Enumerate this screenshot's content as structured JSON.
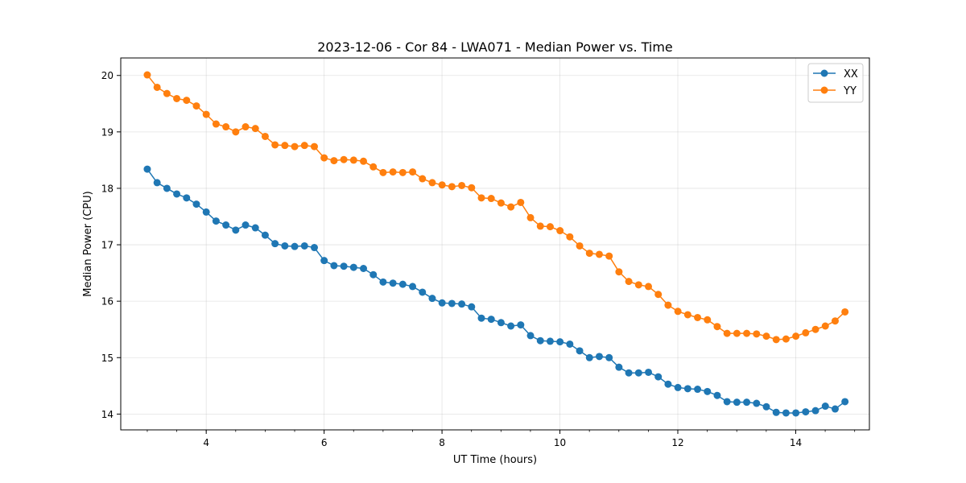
{
  "chart_data": {
    "type": "line",
    "title": "2023-12-06 - Cor 84 - LWA071 - Median Power vs. Time",
    "xlabel": "UT Time (hours)",
    "ylabel": "Median Power (CPU)",
    "xlim": [
      2.55,
      15.25
    ],
    "ylim": [
      13.72,
      20.31
    ],
    "xticks": [
      4,
      6,
      8,
      10,
      12,
      14
    ],
    "xtick_labels": [
      "4",
      "6",
      "8",
      "10",
      "12",
      "14"
    ],
    "xminor_step": 0.5,
    "yticks": [
      14,
      15,
      16,
      17,
      18,
      19,
      20
    ],
    "ytick_labels": [
      "14",
      "15",
      "16",
      "17",
      "18",
      "19",
      "20"
    ],
    "grid": true,
    "legend_position": "top-right",
    "x_start": 3.0,
    "x_step": 0.1667,
    "series": [
      {
        "name": "XX",
        "color": "#1f77b4",
        "marker": "circle",
        "values": [
          18.34,
          18.1,
          18.0,
          17.9,
          17.83,
          17.72,
          17.58,
          17.42,
          17.35,
          17.26,
          17.35,
          17.3,
          17.17,
          17.02,
          16.98,
          16.97,
          16.98,
          16.95,
          16.72,
          16.63,
          16.62,
          16.6,
          16.58,
          16.47,
          16.34,
          16.32,
          16.3,
          16.26,
          16.16,
          16.05,
          15.97,
          15.96,
          15.95,
          15.9,
          15.7,
          15.68,
          15.62,
          15.56,
          15.58,
          15.39,
          15.3,
          15.29,
          15.28,
          15.24,
          15.12,
          15.0,
          15.02,
          15.0,
          14.83,
          14.73,
          14.73,
          14.74,
          14.66,
          14.53,
          14.47,
          14.45,
          14.44,
          14.4,
          14.33,
          14.22,
          14.21,
          14.21,
          14.19,
          14.13,
          14.03,
          14.02,
          14.02,
          14.04,
          14.06,
          14.14,
          14.09,
          14.22
        ]
      },
      {
        "name": "YY",
        "color": "#ff7f0e",
        "marker": "circle",
        "values": [
          20.01,
          19.79,
          19.68,
          19.59,
          19.56,
          19.46,
          19.31,
          19.14,
          19.09,
          19.0,
          19.09,
          19.06,
          18.92,
          18.77,
          18.76,
          18.74,
          18.76,
          18.74,
          18.54,
          18.49,
          18.51,
          18.5,
          18.48,
          18.38,
          18.28,
          18.29,
          18.28,
          18.29,
          18.17,
          18.1,
          18.06,
          18.03,
          18.05,
          18.01,
          17.83,
          17.82,
          17.74,
          17.67,
          17.75,
          17.48,
          17.33,
          17.32,
          17.25,
          17.14,
          16.98,
          16.85,
          16.83,
          16.8,
          16.52,
          16.35,
          16.29,
          16.26,
          16.12,
          15.93,
          15.82,
          15.76,
          15.71,
          15.67,
          15.55,
          15.43,
          15.43,
          15.43,
          15.42,
          15.38,
          15.32,
          15.33,
          15.38,
          15.44,
          15.5,
          15.56,
          15.65,
          15.81
        ]
      }
    ]
  }
}
